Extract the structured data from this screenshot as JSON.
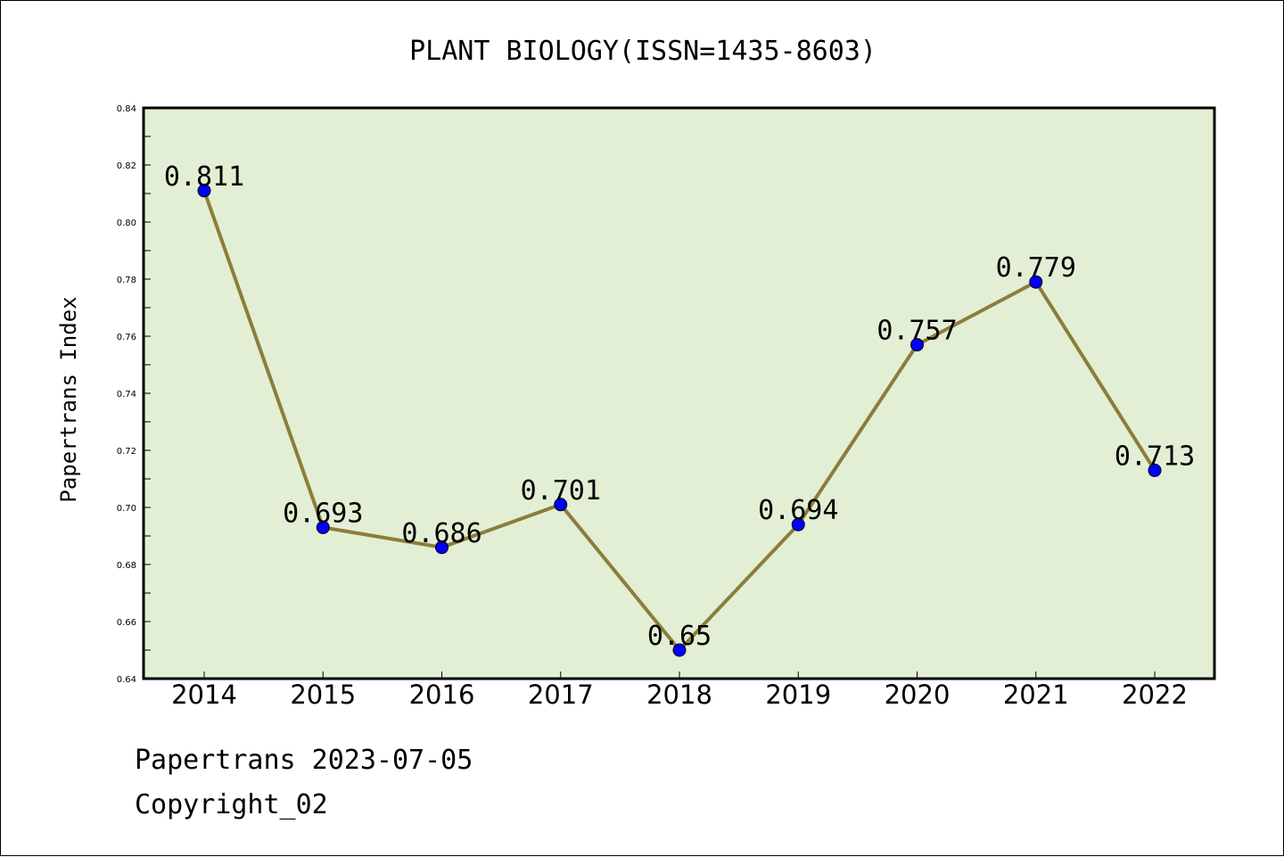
{
  "chart_data": {
    "type": "line",
    "title": "PLANT BIOLOGY(ISSN=1435-8603)",
    "xlabel": "",
    "ylabel": "Papertrans Index",
    "categories": [
      "2014",
      "2015",
      "2016",
      "2017",
      "2018",
      "2019",
      "2020",
      "2021",
      "2022"
    ],
    "values": [
      0.811,
      0.693,
      0.686,
      0.701,
      0.65,
      0.694,
      0.757,
      0.779,
      0.713
    ],
    "data_labels": [
      "0.811",
      "0.693",
      "0.686",
      "0.701",
      "0.65",
      "0.694",
      "0.757",
      "0.779",
      "0.713"
    ],
    "ylim": [
      0.64,
      0.84
    ],
    "yticks": [
      "0.64",
      "0.66",
      "0.68",
      "0.70",
      "0.72",
      "0.74",
      "0.76",
      "0.78",
      "0.80",
      "0.82",
      "0.84"
    ],
    "grid": false,
    "colors": {
      "plot_background": "#e2efd5",
      "line": "#8b7d3a",
      "marker": "#0000ff"
    }
  },
  "footer": {
    "line1": "Papertrans 2023-07-05",
    "line2": "Copyright_02"
  }
}
